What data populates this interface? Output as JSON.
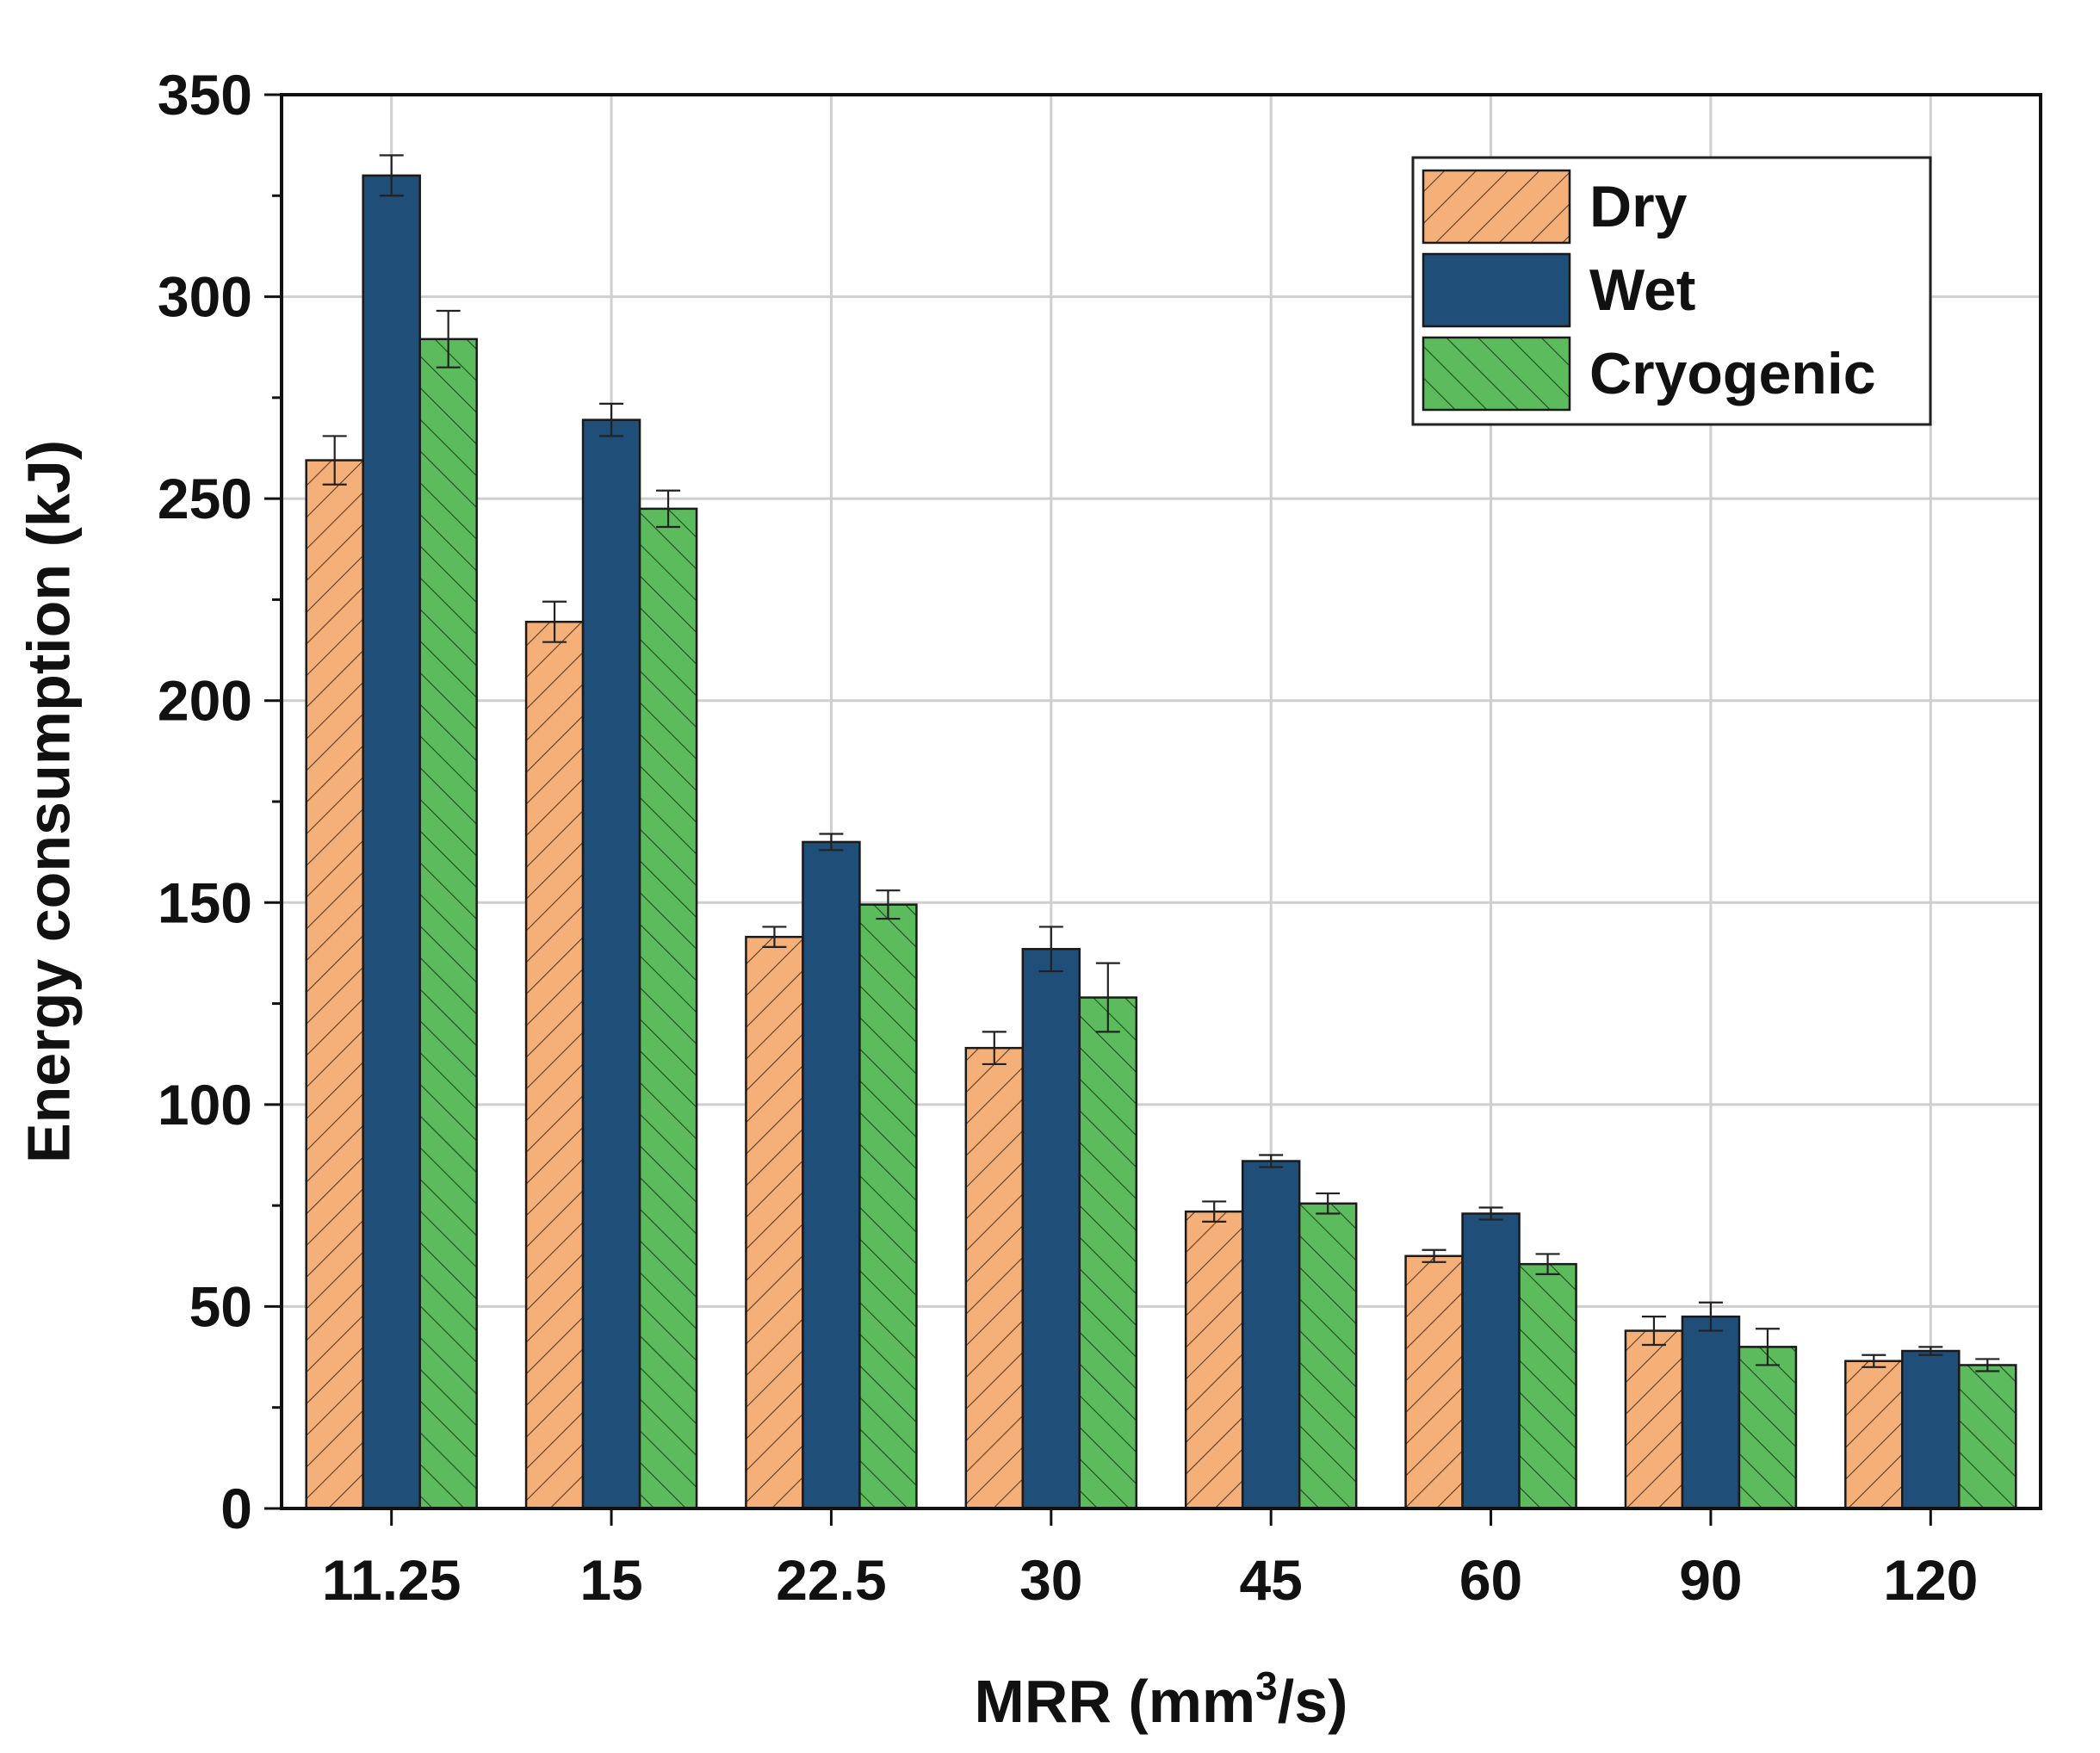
{
  "chart_data": {
    "type": "bar",
    "title": "",
    "xlabel": "MRR (mm",
    "xlabel_sup": "3",
    "xlabel_suffix": "/s)",
    "ylabel": "Energy consumption (kJ)",
    "ylim": [
      0,
      350
    ],
    "yticks": [
      "0",
      "50",
      "100",
      "150",
      "200",
      "250",
      "300",
      "350"
    ],
    "categories": [
      "11.25",
      "15",
      "22.5",
      "30",
      "45",
      "60",
      "90",
      "120"
    ],
    "grid": true,
    "legend_position": "top-right",
    "series": [
      {
        "name": "Dry",
        "color": "#f5b07a",
        "hatch": "forward",
        "values": [
          259.5,
          219.5,
          141.5,
          114,
          73.5,
          62.5,
          44,
          36.5
        ],
        "errors": [
          6,
          5,
          2.5,
          4,
          2.5,
          1.5,
          3.5,
          1.5
        ]
      },
      {
        "name": "Wet",
        "color": "#1f4e79",
        "hatch": "none",
        "values": [
          330,
          269.5,
          165,
          138.5,
          86,
          73,
          47.5,
          39
        ],
        "errors": [
          5,
          4,
          2,
          5.5,
          1.5,
          1.5,
          3.5,
          1
        ]
      },
      {
        "name": "Cryogenic",
        "color": "#5cbb5c",
        "hatch": "backward",
        "values": [
          289.5,
          247.5,
          149.5,
          126.5,
          75.5,
          60.5,
          40,
          35.5
        ],
        "errors": [
          7,
          4.5,
          3.5,
          8.5,
          2.5,
          2.5,
          4.5,
          1.5
        ]
      }
    ]
  }
}
